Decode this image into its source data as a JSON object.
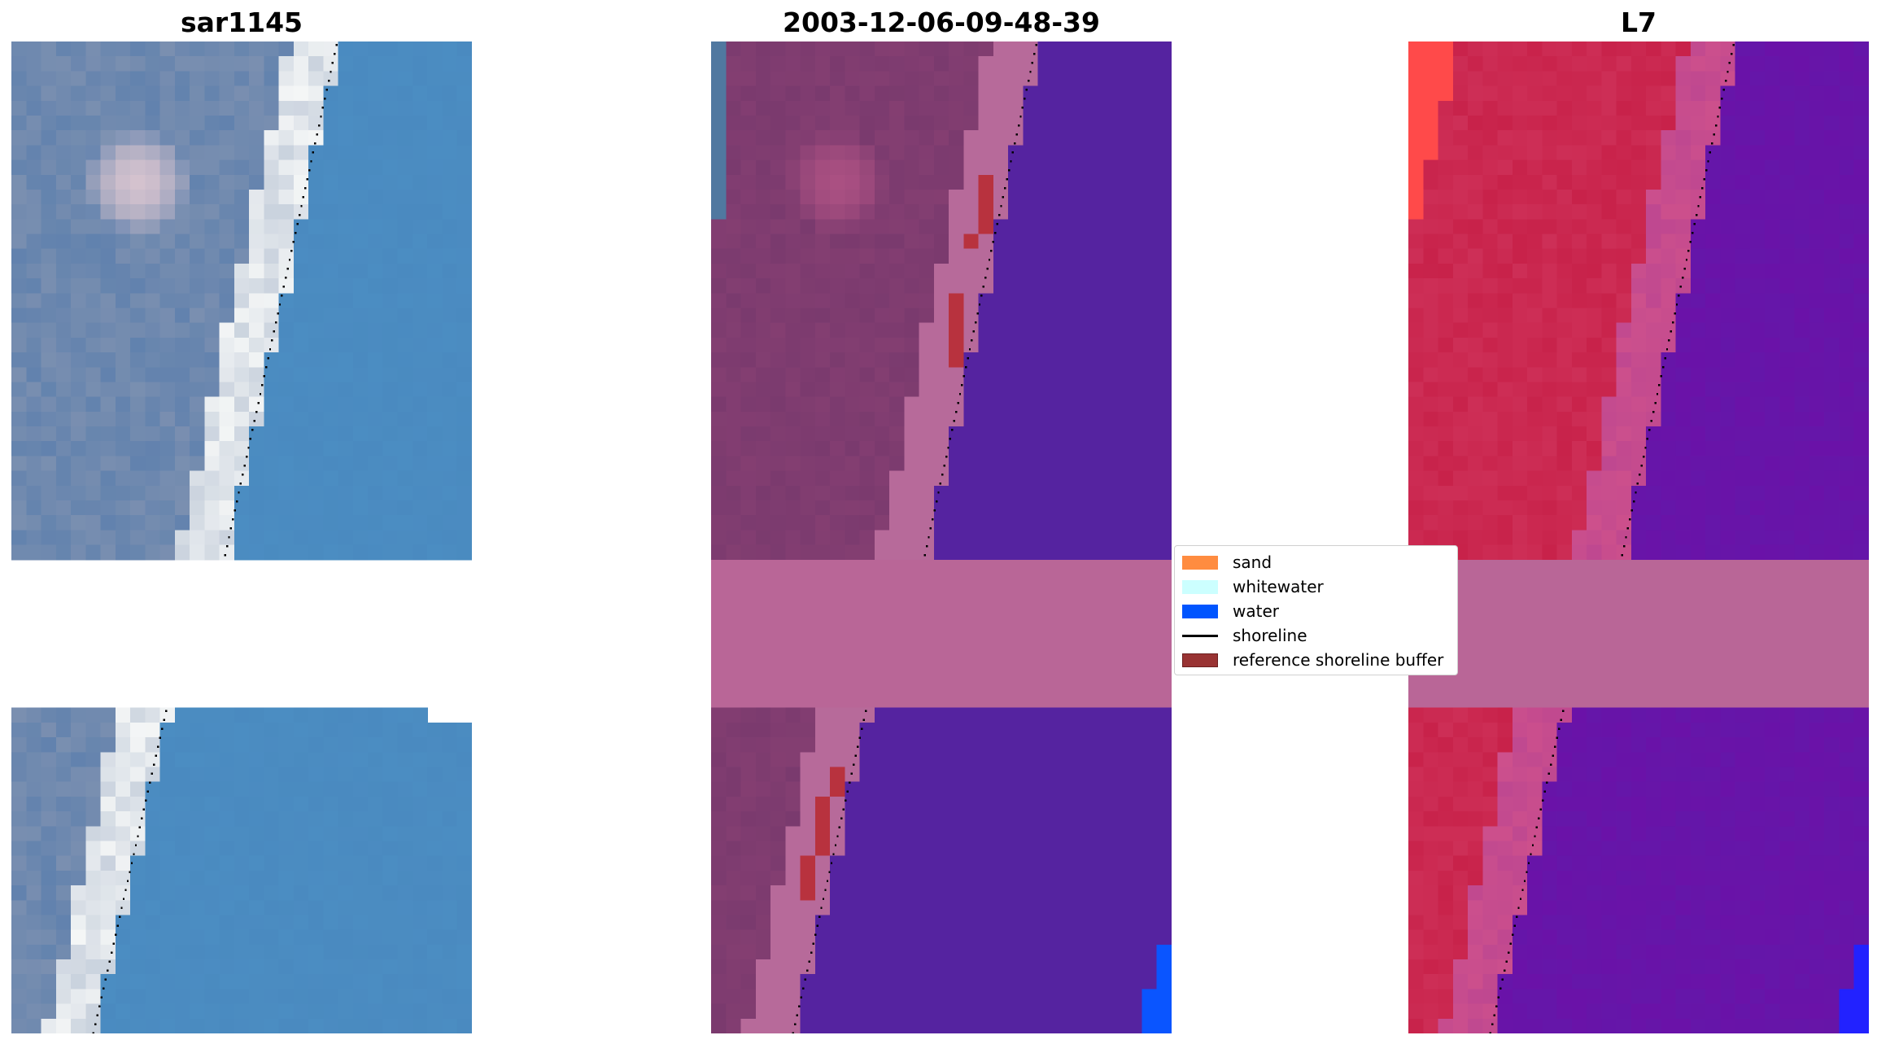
{
  "chart_data": [
    {
      "type": "heatmap",
      "title": "sar1145",
      "xlabel": "",
      "ylabel": "",
      "axes": "off",
      "base": "rgb",
      "shoreline": "dotted black"
    },
    {
      "type": "heatmap",
      "title": "2003-12-06-09-48-39",
      "xlabel": "",
      "ylabel": "",
      "axes": "off",
      "base": "classified",
      "shoreline": "dotted black"
    },
    {
      "type": "heatmap",
      "title": "L7",
      "xlabel": "",
      "ylabel": "",
      "axes": "off",
      "base": "mndwi",
      "shoreline": "dotted black"
    }
  ],
  "legend": {
    "placement": "center",
    "items": [
      {
        "label": "sand",
        "color": "#ff8c40",
        "kind": "patch"
      },
      {
        "label": "whitewater",
        "color": "#ccffff",
        "kind": "patch"
      },
      {
        "label": "water",
        "color": "#0055ff",
        "kind": "patch"
      },
      {
        "label": "shoreline",
        "color": "#000000",
        "kind": "line"
      },
      {
        "label": "reference shoreline buffer",
        "color": "#993333",
        "kind": "patch"
      }
    ]
  },
  "colors": {
    "rgb_water": "#4a8ac0",
    "rgb_beach": "#f4f6f6",
    "rgb_land": "#7a8fb0",
    "rgb_bright": "#d4c2ce",
    "class_land": "#7a3a6e",
    "class_beach": "#b76a9a",
    "class_water": "#5523a0",
    "class_gap": "#b96697",
    "class_buffer": "#b8323e",
    "class_bluewater": "#0a55ff",
    "index_land": "#c8224a",
    "index_water": "#6a12a8",
    "index_sand": "#ff4a4a",
    "index_bluewater": "#2222ff"
  }
}
